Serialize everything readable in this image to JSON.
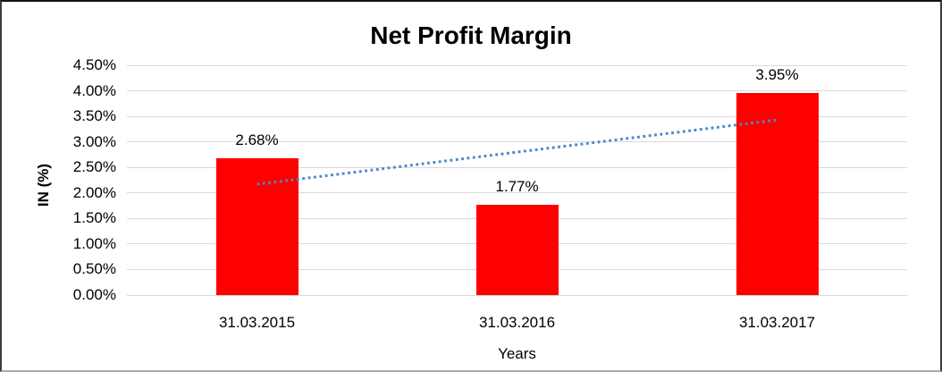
{
  "chart": {
    "title": "Net Profit Margin",
    "x_axis_title": "Years",
    "y_axis_title": "IN (%)"
  },
  "chart_data": {
    "type": "bar",
    "title": "Net Profit Margin",
    "xlabel": "Years",
    "ylabel": "IN (%)",
    "categories": [
      "31.03.2015",
      "31.03.2016",
      "31.03.2017"
    ],
    "values": [
      2.68,
      1.77,
      3.95
    ],
    "data_labels": [
      "2.68%",
      "1.77%",
      "3.95%"
    ],
    "ylim": [
      0,
      4.5
    ],
    "y_ticks": [
      "0.00%",
      "0.50%",
      "1.00%",
      "1.50%",
      "2.00%",
      "2.50%",
      "3.00%",
      "3.50%",
      "4.00%",
      "4.50%"
    ],
    "y_tick_values": [
      0,
      0.5,
      1,
      1.5,
      2,
      2.5,
      3,
      3.5,
      4,
      4.5
    ],
    "grid": "horizontal",
    "legend": "none",
    "bar_color": "#ff0000",
    "gridline_color": "#d9d9d9",
    "trendline": {
      "type": "linear",
      "style": "dotted",
      "color": "#4a86c8",
      "start_value": 2.17,
      "end_value": 3.43
    }
  }
}
